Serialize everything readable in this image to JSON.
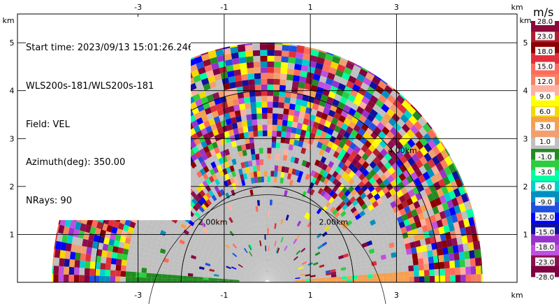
{
  "info": {
    "start_time": "Start time: 2023/09/13 15:01:26.246",
    "instrument": "WLS200s-181/WLS200s-181",
    "field": "Field: VEL",
    "azimuth": "Azimuth(deg): 350.00",
    "nrays": "NRays: 90"
  },
  "chart_data": {
    "type": "heatmap",
    "projection": "polar-rhi",
    "axes": {
      "x_unit": "km",
      "y_unit": "km",
      "xlim": [
        -5.8,
        5.8
      ],
      "ylim": [
        0,
        5.6
      ],
      "x_ticks": [
        -3,
        -1,
        1,
        3
      ],
      "x_tick_labels": [
        "-3",
        "-1",
        "1",
        "3"
      ],
      "y_ticks": [
        1,
        2,
        3,
        4,
        5
      ],
      "y_tick_labels": [
        "1",
        "2",
        "3",
        "4",
        "5"
      ],
      "grid": true
    },
    "range_rings_km": [
      2,
      4
    ],
    "range_ring_labels": [
      "2.00km",
      "2.00km",
      "4.00km",
      "4.00km"
    ],
    "max_range_km": 5.0,
    "elevation_step_deg": 2,
    "colorbar": {
      "title": "m/s",
      "tick_labels": [
        "28.0",
        "23.0",
        "18.0",
        "15.0",
        "12.0",
        "9.0",
        "6.0",
        "3.0",
        "1.0",
        "-1.0",
        "-3.0",
        "-6.0",
        "-9.0",
        "-12.0",
        "-15.0",
        "-18.0",
        "-23.0",
        "-28.0"
      ],
      "colors": [
        "#8b0a3a",
        "#b01e2e",
        "#8b0000",
        "#e0303a",
        "#ff6a5c",
        "#f88060",
        "#ffb0a0",
        "#ffff00",
        "#f5d800",
        "#f5a050",
        "#f0a070",
        "#c0c0c0",
        "#228b22",
        "#2ecc40",
        "#00ffa0",
        "#00d0d0",
        "#0090c0",
        "#2050e0",
        "#0000ff",
        "#1010a0",
        "#9932cc",
        "#c050e0",
        "#8b1050",
        "#800040"
      ]
    }
  }
}
